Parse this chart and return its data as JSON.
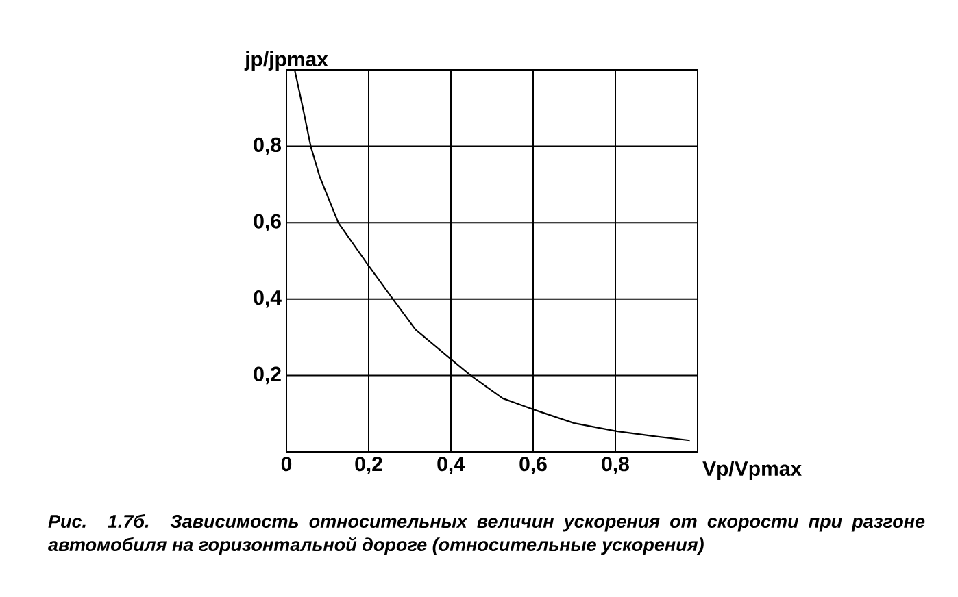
{
  "chart_data": {
    "type": "line",
    "x": [
      0.02,
      0.04,
      0.059,
      0.081,
      0.126,
      0.198,
      0.259,
      0.314,
      0.403,
      0.448,
      0.526,
      0.603,
      0.7,
      0.803,
      0.9,
      0.981
    ],
    "series": [
      {
        "color": "#000000",
        "values": [
          1.0,
          0.9,
          0.8,
          0.72,
          0.6,
          0.49,
          0.4,
          0.32,
          0.24,
          0.2,
          0.14,
          0.11,
          0.075,
          0.054,
          0.04,
          0.03
        ]
      }
    ],
    "xlabel": "Vp/Vpmax",
    "ylabel": "jp/jpmax",
    "xlim": [
      0,
      1
    ],
    "ylim": [
      0,
      1
    ],
    "xticks": [
      0,
      {
        "value": 0.2,
        "label": "0,2"
      },
      {
        "value": 0.4,
        "label": "0,4"
      },
      {
        "value": 0.6,
        "label": "0,6"
      },
      {
        "value": 0.8,
        "label": "0,8"
      }
    ],
    "yticks": [
      {
        "value": 0.2,
        "label": "0,2"
      },
      {
        "value": 0.4,
        "label": "0,4"
      },
      {
        "value": 0.6,
        "label": "0,6"
      },
      {
        "value": 0.8,
        "label": "0,8"
      }
    ],
    "grid": true,
    "line_style": "solid",
    "annotations": [
      "Рис. 1.7б. Зависимость относительных величин ускорения от скорости при разгоне автомобиля на горизонтальной дороге (относительные ускорения)"
    ]
  }
}
